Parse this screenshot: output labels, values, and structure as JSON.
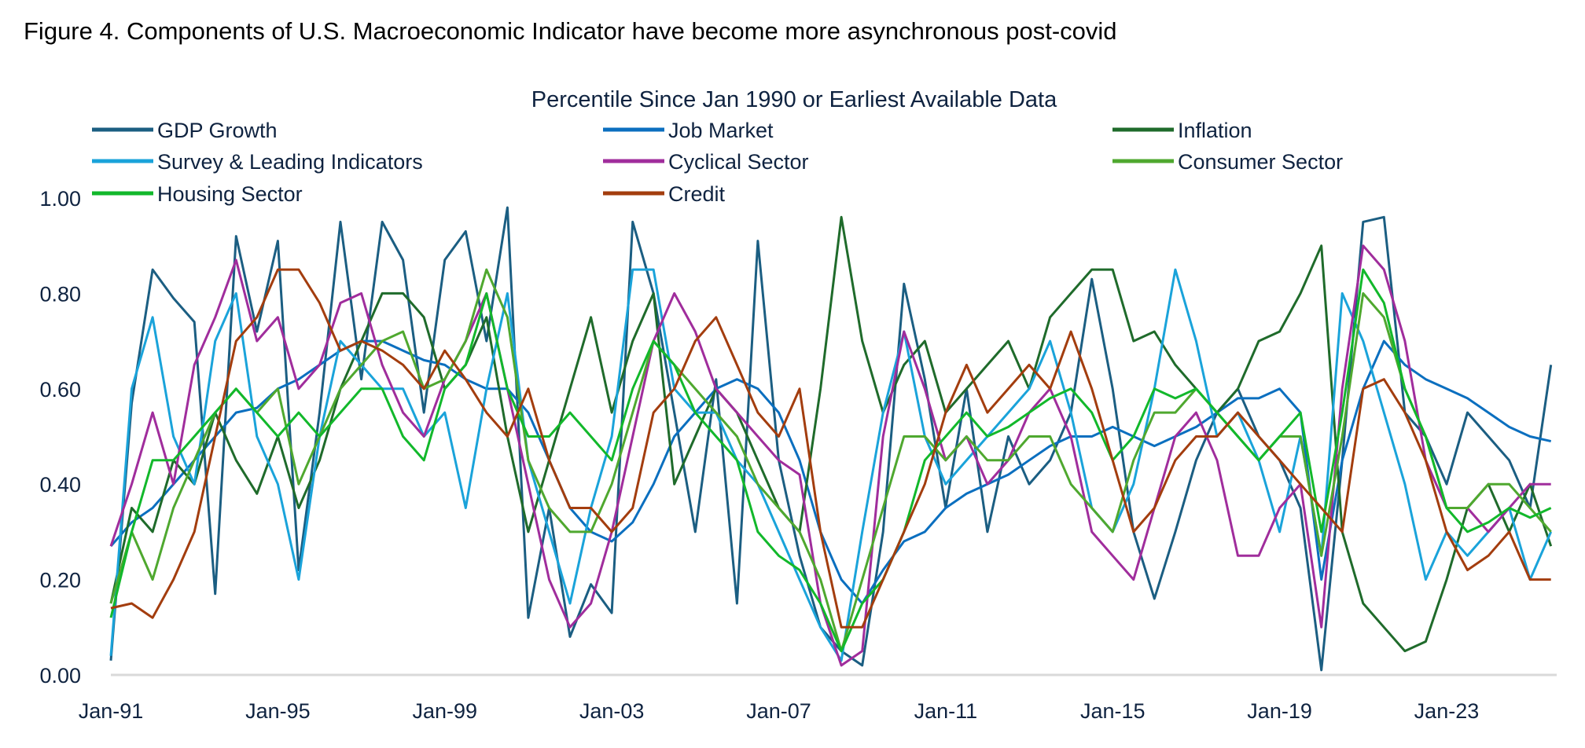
{
  "chart_data": {
    "type": "line",
    "title": "Figure 4. Components of U.S. Macroeconomic Indicator have become more asynchronous post-covid",
    "subtitle": "Percentile Since Jan 1990 or Earliest Available Data",
    "xlabel": "",
    "ylabel": "",
    "ylim": [
      0,
      1
    ],
    "xlim": [
      1991.0,
      2025.6
    ],
    "yticks": [
      "0.00",
      "0.20",
      "0.40",
      "0.60",
      "0.80",
      "1.00"
    ],
    "ytick_values": [
      0,
      0.2,
      0.4,
      0.6,
      0.8,
      1.0
    ],
    "xticks": [
      "Jan-91",
      "Jan-95",
      "Jan-99",
      "Jan-03",
      "Jan-07",
      "Jan-11",
      "Jan-15",
      "Jan-19",
      "Jan-23"
    ],
    "xtick_values": [
      1991,
      1995,
      1999,
      2003,
      2007,
      2011,
      2015,
      2019,
      2023
    ],
    "grid": false,
    "legend_placement": "top",
    "x_start": 1991.0,
    "x_step_years": 0.5,
    "series": [
      {
        "name": "GDP Growth",
        "color": "#1b5e82",
        "values": [
          0.03,
          0.57,
          0.85,
          0.79,
          0.74,
          0.17,
          0.92,
          0.72,
          0.91,
          0.22,
          0.55,
          0.95,
          0.62,
          0.95,
          0.87,
          0.55,
          0.87,
          0.93,
          0.7,
          0.98,
          0.12,
          0.35,
          0.08,
          0.19,
          0.13,
          0.95,
          0.8,
          0.55,
          0.3,
          0.62,
          0.15,
          0.91,
          0.45,
          0.25,
          0.1,
          0.05,
          0.02,
          0.3,
          0.82,
          0.62,
          0.35,
          0.6,
          0.3,
          0.5,
          0.4,
          0.45,
          0.55,
          0.83,
          0.6,
          0.3,
          0.16,
          0.3,
          0.45,
          0.55,
          0.6,
          0.5,
          0.45,
          0.35,
          0.01,
          0.45,
          0.95,
          0.96,
          0.55,
          0.5,
          0.4,
          0.55,
          0.5,
          0.45,
          0.35,
          0.65
        ]
      },
      {
        "name": "Job Market",
        "color": "#0b6fbf",
        "values": [
          0.27,
          0.32,
          0.35,
          0.4,
          0.45,
          0.5,
          0.55,
          0.56,
          0.6,
          0.62,
          0.65,
          0.68,
          0.7,
          0.7,
          0.68,
          0.66,
          0.65,
          0.62,
          0.6,
          0.6,
          0.55,
          0.45,
          0.35,
          0.3,
          0.28,
          0.32,
          0.4,
          0.5,
          0.55,
          0.6,
          0.62,
          0.6,
          0.55,
          0.45,
          0.3,
          0.2,
          0.15,
          0.22,
          0.28,
          0.3,
          0.35,
          0.38,
          0.4,
          0.42,
          0.45,
          0.48,
          0.5,
          0.5,
          0.52,
          0.5,
          0.48,
          0.5,
          0.52,
          0.55,
          0.58,
          0.58,
          0.6,
          0.55,
          0.2,
          0.45,
          0.6,
          0.7,
          0.65,
          0.62,
          0.6,
          0.58,
          0.55,
          0.52,
          0.5,
          0.49
        ]
      },
      {
        "name": "Inflation",
        "color": "#1f6b2b",
        "values": [
          0.15,
          0.35,
          0.3,
          0.45,
          0.4,
          0.55,
          0.45,
          0.38,
          0.5,
          0.35,
          0.45,
          0.6,
          0.7,
          0.8,
          0.8,
          0.75,
          0.6,
          0.65,
          0.75,
          0.5,
          0.3,
          0.45,
          0.6,
          0.75,
          0.55,
          0.7,
          0.8,
          0.4,
          0.5,
          0.6,
          0.55,
          0.45,
          0.35,
          0.3,
          0.6,
          0.96,
          0.7,
          0.55,
          0.65,
          0.7,
          0.55,
          0.6,
          0.65,
          0.7,
          0.6,
          0.75,
          0.8,
          0.85,
          0.85,
          0.7,
          0.72,
          0.65,
          0.6,
          0.55,
          0.6,
          0.7,
          0.72,
          0.8,
          0.9,
          0.3,
          0.15,
          0.1,
          0.05,
          0.07,
          0.2,
          0.35,
          0.4,
          0.3,
          0.4,
          0.27
        ]
      },
      {
        "name": "Survey & Leading Indicators",
        "color": "#1aa3da",
        "values": [
          0.04,
          0.6,
          0.75,
          0.5,
          0.4,
          0.7,
          0.8,
          0.5,
          0.4,
          0.2,
          0.5,
          0.7,
          0.65,
          0.6,
          0.6,
          0.5,
          0.55,
          0.35,
          0.6,
          0.8,
          0.45,
          0.3,
          0.15,
          0.35,
          0.5,
          0.85,
          0.85,
          0.6,
          0.55,
          0.55,
          0.45,
          0.4,
          0.3,
          0.2,
          0.1,
          0.03,
          0.3,
          0.55,
          0.72,
          0.5,
          0.4,
          0.45,
          0.5,
          0.55,
          0.6,
          0.7,
          0.55,
          0.35,
          0.3,
          0.4,
          0.6,
          0.85,
          0.7,
          0.5,
          0.55,
          0.45,
          0.3,
          0.5,
          0.25,
          0.8,
          0.7,
          0.55,
          0.4,
          0.2,
          0.3,
          0.25,
          0.3,
          0.35,
          0.2,
          0.3
        ]
      },
      {
        "name": "Cyclical Sector",
        "color": "#a02d9c",
        "values": [
          0.27,
          0.4,
          0.55,
          0.4,
          0.65,
          0.75,
          0.87,
          0.7,
          0.75,
          0.6,
          0.65,
          0.78,
          0.8,
          0.65,
          0.55,
          0.5,
          0.62,
          0.7,
          0.8,
          0.6,
          0.4,
          0.2,
          0.1,
          0.15,
          0.3,
          0.5,
          0.7,
          0.8,
          0.72,
          0.6,
          0.55,
          0.5,
          0.45,
          0.42,
          0.15,
          0.02,
          0.05,
          0.5,
          0.72,
          0.6,
          0.45,
          0.5,
          0.4,
          0.45,
          0.55,
          0.6,
          0.5,
          0.3,
          0.25,
          0.2,
          0.35,
          0.5,
          0.55,
          0.45,
          0.25,
          0.25,
          0.35,
          0.4,
          0.1,
          0.6,
          0.9,
          0.85,
          0.7,
          0.45,
          0.35,
          0.35,
          0.3,
          0.35,
          0.4,
          0.4
        ]
      },
      {
        "name": "Consumer Sector",
        "color": "#4fa82f",
        "values": [
          0.15,
          0.3,
          0.2,
          0.35,
          0.45,
          0.55,
          0.6,
          0.55,
          0.6,
          0.4,
          0.5,
          0.6,
          0.65,
          0.7,
          0.72,
          0.6,
          0.62,
          0.7,
          0.85,
          0.75,
          0.45,
          0.35,
          0.3,
          0.3,
          0.4,
          0.55,
          0.7,
          0.65,
          0.6,
          0.55,
          0.5,
          0.4,
          0.35,
          0.3,
          0.2,
          0.05,
          0.2,
          0.35,
          0.5,
          0.5,
          0.45,
          0.5,
          0.45,
          0.45,
          0.5,
          0.5,
          0.4,
          0.35,
          0.3,
          0.45,
          0.55,
          0.55,
          0.6,
          0.55,
          0.5,
          0.45,
          0.5,
          0.5,
          0.25,
          0.5,
          0.8,
          0.75,
          0.6,
          0.5,
          0.35,
          0.35,
          0.4,
          0.4,
          0.35,
          0.3
        ]
      },
      {
        "name": "Housing Sector",
        "color": "#12b82b",
        "values": [
          0.12,
          0.3,
          0.45,
          0.45,
          0.5,
          0.55,
          0.6,
          0.55,
          0.5,
          0.55,
          0.5,
          0.55,
          0.6,
          0.6,
          0.5,
          0.45,
          0.6,
          0.65,
          0.8,
          0.6,
          0.5,
          0.5,
          0.55,
          0.5,
          0.45,
          0.6,
          0.7,
          0.65,
          0.55,
          0.5,
          0.45,
          0.3,
          0.25,
          0.22,
          0.15,
          0.05,
          0.15,
          0.2,
          0.3,
          0.45,
          0.5,
          0.55,
          0.5,
          0.52,
          0.55,
          0.58,
          0.6,
          0.55,
          0.45,
          0.5,
          0.6,
          0.58,
          0.6,
          0.55,
          0.5,
          0.45,
          0.5,
          0.55,
          0.3,
          0.55,
          0.85,
          0.78,
          0.6,
          0.5,
          0.35,
          0.3,
          0.32,
          0.35,
          0.33,
          0.35
        ]
      },
      {
        "name": "Credit",
        "color": "#a33d0e",
        "values": [
          0.14,
          0.15,
          0.12,
          0.2,
          0.3,
          0.5,
          0.7,
          0.75,
          0.85,
          0.85,
          0.78,
          0.68,
          0.7,
          0.68,
          0.65,
          0.6,
          0.68,
          0.62,
          0.55,
          0.5,
          0.6,
          0.45,
          0.35,
          0.35,
          0.3,
          0.35,
          0.55,
          0.6,
          0.7,
          0.75,
          0.65,
          0.55,
          0.5,
          0.6,
          0.3,
          0.1,
          0.1,
          0.2,
          0.3,
          0.4,
          0.55,
          0.65,
          0.55,
          0.6,
          0.65,
          0.6,
          0.72,
          0.6,
          0.45,
          0.3,
          0.35,
          0.45,
          0.5,
          0.5,
          0.55,
          0.5,
          0.45,
          0.4,
          0.35,
          0.3,
          0.6,
          0.62,
          0.55,
          0.45,
          0.3,
          0.22,
          0.25,
          0.3,
          0.2,
          0.2
        ]
      }
    ]
  }
}
